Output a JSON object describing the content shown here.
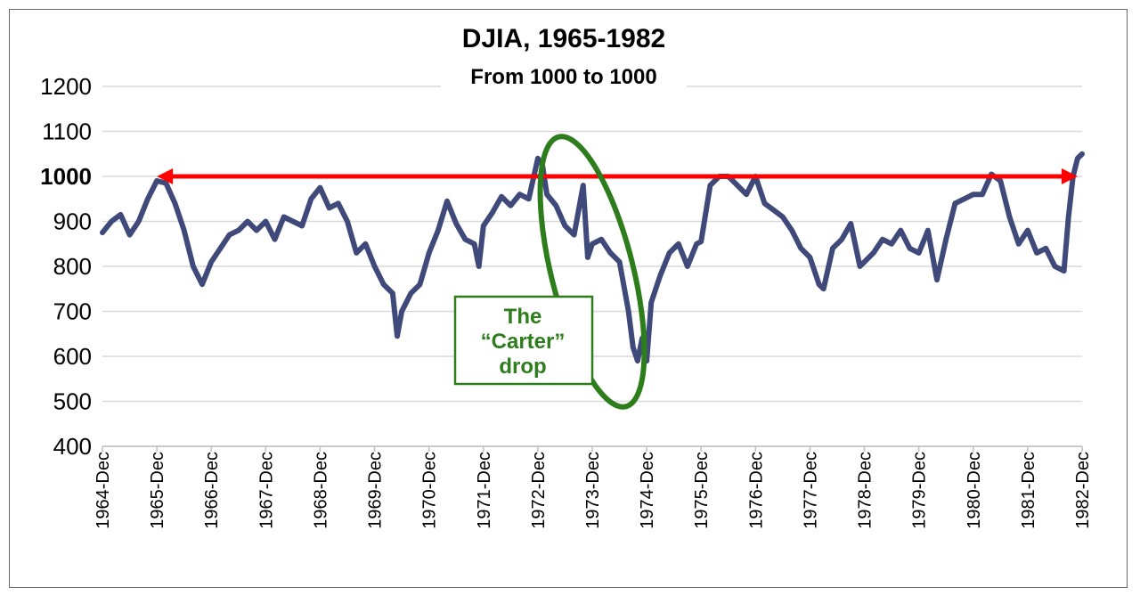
{
  "chart_data": {
    "type": "line",
    "title": "DJIA, 1965-1982",
    "subtitle": "From 1000 to 1000",
    "ylim": [
      400,
      1200
    ],
    "yticks": [
      400,
      500,
      600,
      700,
      800,
      900,
      1000,
      1100,
      1200
    ],
    "highlight_tick": 1000,
    "grid": "horizontal",
    "xlim": [
      "1964-12",
      "1982-12"
    ],
    "xtick_labels": [
      "1964-Dec",
      "1965-Dec",
      "1966-Dec",
      "1967-Dec",
      "1968-Dec",
      "1969-Dec",
      "1970-Dec",
      "1971-Dec",
      "1972-Dec",
      "1973-Dec",
      "1974-Dec",
      "1975-Dec",
      "1976-Dec",
      "1977-Dec",
      "1978-Dec",
      "1979-Dec",
      "1980-Dec",
      "1981-Dec",
      "1982-Dec"
    ],
    "series": [
      {
        "color": "#3f4a7a",
        "points": [
          [
            "1964-12",
            875
          ],
          [
            "1965-02",
            900
          ],
          [
            "1965-04",
            915
          ],
          [
            "1965-06",
            870
          ],
          [
            "1965-08",
            900
          ],
          [
            "1965-10",
            950
          ],
          [
            "1965-12",
            990
          ],
          [
            "1966-02",
            985
          ],
          [
            "1966-04",
            940
          ],
          [
            "1966-06",
            880
          ],
          [
            "1966-08",
            800
          ],
          [
            "1966-10",
            760
          ],
          [
            "1966-12",
            810
          ],
          [
            "1967-02",
            840
          ],
          [
            "1967-04",
            870
          ],
          [
            "1967-06",
            880
          ],
          [
            "1967-08",
            900
          ],
          [
            "1967-10",
            880
          ],
          [
            "1967-12",
            900
          ],
          [
            "1968-02",
            860
          ],
          [
            "1968-04",
            910
          ],
          [
            "1968-06",
            900
          ],
          [
            "1968-08",
            890
          ],
          [
            "1968-10",
            950
          ],
          [
            "1968-12",
            975
          ],
          [
            "1969-02",
            930
          ],
          [
            "1969-04",
            940
          ],
          [
            "1969-06",
            900
          ],
          [
            "1969-08",
            830
          ],
          [
            "1969-10",
            850
          ],
          [
            "1969-12",
            800
          ],
          [
            "1970-02",
            760
          ],
          [
            "1970-04",
            740
          ],
          [
            "1970-05",
            645
          ],
          [
            "1970-06",
            700
          ],
          [
            "1970-08",
            740
          ],
          [
            "1970-10",
            760
          ],
          [
            "1970-12",
            830
          ],
          [
            "1971-02",
            880
          ],
          [
            "1971-04",
            945
          ],
          [
            "1971-06",
            895
          ],
          [
            "1971-08",
            860
          ],
          [
            "1971-10",
            850
          ],
          [
            "1971-11",
            800
          ],
          [
            "1971-12",
            890
          ],
          [
            "1972-02",
            920
          ],
          [
            "1972-04",
            955
          ],
          [
            "1972-06",
            935
          ],
          [
            "1972-08",
            960
          ],
          [
            "1972-10",
            950
          ],
          [
            "1972-12",
            1040
          ],
          [
            "1973-01",
            1025
          ],
          [
            "1973-02",
            960
          ],
          [
            "1973-04",
            935
          ],
          [
            "1973-06",
            890
          ],
          [
            "1973-08",
            870
          ],
          [
            "1973-10",
            980
          ],
          [
            "1973-11",
            820
          ],
          [
            "1973-12",
            850
          ],
          [
            "1974-02",
            860
          ],
          [
            "1974-04",
            830
          ],
          [
            "1974-06",
            810
          ],
          [
            "1974-08",
            700
          ],
          [
            "1974-09",
            620
          ],
          [
            "1974-10",
            590
          ],
          [
            "1974-11",
            640
          ],
          [
            "1974-12",
            590
          ],
          [
            "1975-01",
            720
          ],
          [
            "1975-03",
            780
          ],
          [
            "1975-05",
            830
          ],
          [
            "1975-07",
            850
          ],
          [
            "1975-09",
            800
          ],
          [
            "1975-11",
            850
          ],
          [
            "1975-12",
            855
          ],
          [
            "1976-02",
            980
          ],
          [
            "1976-04",
            1000
          ],
          [
            "1976-06",
            1000
          ],
          [
            "1976-08",
            980
          ],
          [
            "1976-10",
            960
          ],
          [
            "1976-12",
            1000
          ],
          [
            "1977-02",
            940
          ],
          [
            "1977-04",
            925
          ],
          [
            "1977-06",
            910
          ],
          [
            "1977-08",
            880
          ],
          [
            "1977-10",
            840
          ],
          [
            "1977-12",
            820
          ],
          [
            "1978-02",
            760
          ],
          [
            "1978-03",
            750
          ],
          [
            "1978-05",
            840
          ],
          [
            "1978-07",
            860
          ],
          [
            "1978-09",
            895
          ],
          [
            "1978-11",
            800
          ],
          [
            "1978-12",
            810
          ],
          [
            "1979-02",
            830
          ],
          [
            "1979-04",
            860
          ],
          [
            "1979-06",
            850
          ],
          [
            "1979-08",
            880
          ],
          [
            "1979-10",
            840
          ],
          [
            "1979-12",
            830
          ],
          [
            "1980-02",
            880
          ],
          [
            "1980-04",
            770
          ],
          [
            "1980-06",
            860
          ],
          [
            "1980-08",
            940
          ],
          [
            "1980-10",
            950
          ],
          [
            "1980-12",
            960
          ],
          [
            "1981-02",
            960
          ],
          [
            "1981-04",
            1005
          ],
          [
            "1981-06",
            990
          ],
          [
            "1981-08",
            910
          ],
          [
            "1981-10",
            850
          ],
          [
            "1981-12",
            880
          ],
          [
            "1982-02",
            830
          ],
          [
            "1982-04",
            840
          ],
          [
            "1982-06",
            800
          ],
          [
            "1982-08",
            790
          ],
          [
            "1982-09",
            910
          ],
          [
            "1982-10",
            1000
          ],
          [
            "1982-11",
            1040
          ],
          [
            "1982-12",
            1050
          ]
        ]
      }
    ],
    "reference_line": {
      "y": 1000,
      "from": "1965-12",
      "to": "1982-11",
      "color": "#ff0000",
      "style": "double-arrow"
    },
    "annotation": {
      "lines": [
        "The",
        "“Carter”",
        "drop"
      ],
      "color": "#2e7d1c",
      "target_from": "1972-12",
      "target_to": "1974-12"
    }
  }
}
